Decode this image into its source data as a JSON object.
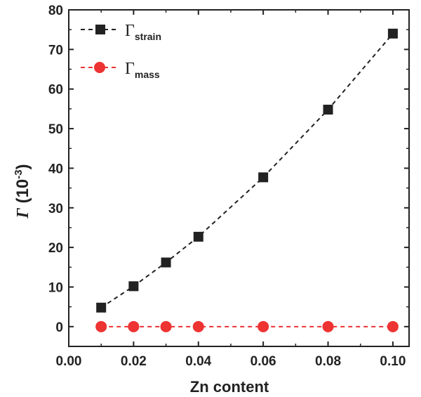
{
  "chart_data": {
    "type": "line",
    "xlabel": "Zn content",
    "ylabel": {
      "symbol": "Γ",
      "rest": " (10",
      "exp": "-3",
      "close": ")"
    },
    "xlim": [
      0.0,
      0.105
    ],
    "ylim": [
      -5,
      80
    ],
    "x_ticks": [
      "0.00",
      "0.02",
      "0.04",
      "0.06",
      "0.08",
      "0.10"
    ],
    "y_ticks": [
      "0",
      "10",
      "20",
      "30",
      "40",
      "50",
      "60",
      "70",
      "80"
    ],
    "x_tick_values": [
      0.0,
      0.02,
      0.04,
      0.06,
      0.08,
      0.1
    ],
    "y_tick_values": [
      0,
      10,
      20,
      30,
      40,
      50,
      60,
      70,
      80
    ],
    "grid": false,
    "legend_position": "top-left",
    "series": [
      {
        "name": "Γstrain",
        "legend_symbol": "Γ",
        "legend_subscript": "strain",
        "color": "#222222",
        "marker": "square",
        "line_style": "dashed",
        "x": [
          0.01,
          0.02,
          0.03,
          0.04,
          0.06,
          0.08,
          0.1
        ],
        "y": [
          4.8,
          10.2,
          16.2,
          22.7,
          37.7,
          54.8,
          74.0
        ]
      },
      {
        "name": "Γmass",
        "legend_symbol": "Γ",
        "legend_subscript": "mass",
        "color": "#ee3333",
        "marker": "circle",
        "line_style": "dashed",
        "x": [
          0.01,
          0.02,
          0.03,
          0.04,
          0.06,
          0.08,
          0.1
        ],
        "y": [
          0.0,
          0.0,
          0.0,
          0.0,
          0.0,
          0.0,
          0.0
        ]
      }
    ]
  }
}
